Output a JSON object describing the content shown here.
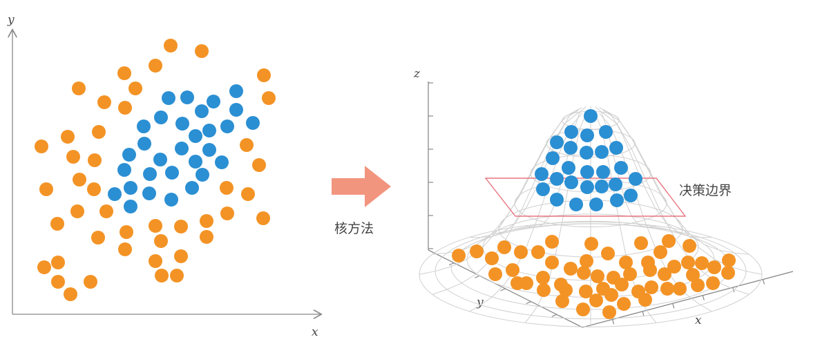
{
  "left_panel": {
    "x_axis_label": "x",
    "y_axis_label": "y"
  },
  "arrow": {
    "label": "核方法",
    "color": "#f2957e"
  },
  "right_panel": {
    "x_axis_label": "x",
    "y_axis_label": "y",
    "z_axis_label": "z",
    "plane_label": "决策边界",
    "plane_color": "#e8737f"
  },
  "colors": {
    "class_a": "#f39325",
    "class_b": "#2b8fd3",
    "axis": "#888888",
    "mesh": "#cfcfcf"
  }
}
